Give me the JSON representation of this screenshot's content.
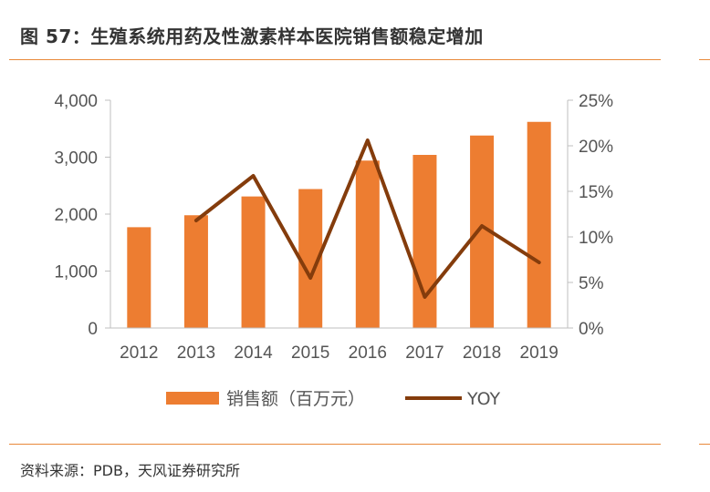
{
  "figure": {
    "title": "图 57：生殖系统用药及性激素样本医院销售额稳定增加",
    "source": "资料来源：PDB，天风证券研究所"
  },
  "colors": {
    "bar": "#ed7d31",
    "line": "#843c0c",
    "rule": "#e8893a",
    "axis": "#bfbfbf"
  },
  "chart_data": {
    "type": "bar",
    "categories": [
      "2012",
      "2013",
      "2014",
      "2015",
      "2016",
      "2017",
      "2018",
      "2019"
    ],
    "series": [
      {
        "name": "销售额（百万元）",
        "type": "bar",
        "axis": "left",
        "values": [
          1770,
          1980,
          2310,
          2440,
          2940,
          3040,
          3380,
          3620
        ]
      },
      {
        "name": "YOY",
        "type": "line",
        "axis": "right",
        "values": [
          null,
          11.8,
          16.7,
          5.5,
          20.6,
          3.4,
          11.2,
          7.2
        ]
      }
    ],
    "y_left": {
      "ylim": [
        0,
        4000
      ],
      "ticks": [
        "0",
        "1,000",
        "2,000",
        "3,000",
        "4,000"
      ]
    },
    "y_right": {
      "ylim": [
        0,
        25
      ],
      "ticks": [
        "0%",
        "5%",
        "10%",
        "15%",
        "20%",
        "25%"
      ]
    },
    "legend": {
      "placement": "bottom"
    },
    "grid": false
  }
}
